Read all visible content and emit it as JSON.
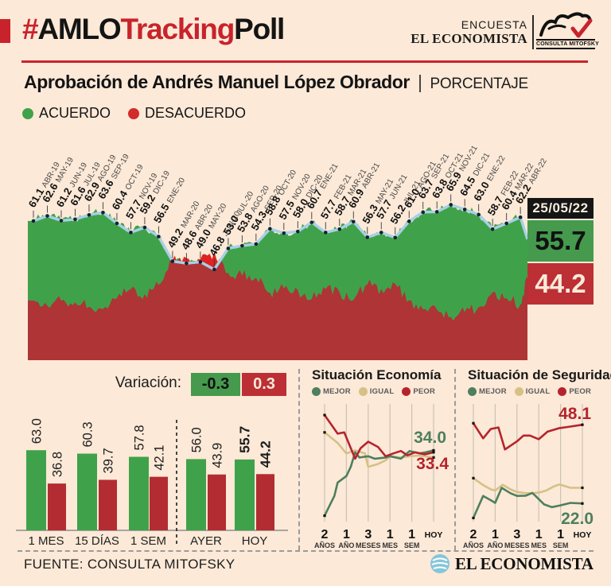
{
  "header": {
    "hashtag": "#",
    "amlo": "AMLO",
    "tracking": "Tracking",
    "poll": "Poll",
    "brand_line1": "ENCUESTA",
    "brand_line2": "EL ECONOMISTA",
    "mitofsky_label": "CONSULTA MITOFSKY"
  },
  "title": {
    "text": "Aprobación de Andrés Manuel López Obrador",
    "sep": "|",
    "unit": "PORCENTAJE"
  },
  "legend": {
    "acuerdo": "ACUERDO",
    "desacuerdo": "DESACUERDO"
  },
  "current": {
    "date": "25/05/22",
    "acuerdo": "55.7",
    "desacuerdo": "44.2"
  },
  "variation": {
    "label": "Variación:",
    "acuerdo": "-0.3",
    "desacuerdo": "0.3"
  },
  "footer": {
    "source": "FUENTE: CONSULTA MITOFSKY",
    "brand": "EL ECONOMISTA"
  },
  "colors": {
    "bg": "#fce9d7",
    "crimson": "#c8232c",
    "ink": "#141414",
    "area_green": "#3fa24a",
    "area_maroon": "#ae3436",
    "area_bright_red": "#e02320",
    "blue_line": "#a8cfe7",
    "dot": "#16222e",
    "badge_green": "#459a4d",
    "badge_red": "#bc2f34",
    "bar_green": "#3fa24a",
    "bar_red": "#b32c32",
    "mejor": "#4e7f5e",
    "igual": "#d5c185",
    "peor": "#b5242d",
    "grid": "#ccc2b4"
  },
  "chart_data": [
    {
      "id": "tracking",
      "type": "area",
      "title": "Aprobación de Andrés Manuel López Obrador",
      "unit": "PORCENTAJE",
      "legend": [
        "ACUERDO",
        "DESACUERDO"
      ],
      "x_labels": [
        "ABR-19",
        "MAY-19",
        "JUN-19",
        "JUL-19",
        "AGO-19",
        "SEP-19",
        "OCT-19",
        "NOV-19",
        "DIC-19",
        "ENE-20",
        "MAR-20",
        "ABR-20",
        "MAY-20",
        "JUN-20",
        "JUL-20",
        "AGO-20",
        "SEP-20",
        "OCT-20",
        "NOV-20",
        "DIC-20",
        "ENE-21",
        "FEB-21",
        "MAR-21",
        "ABR-21",
        "MAY-21",
        "JUN-21",
        "JUL-21",
        "AGO-21",
        "SEP-21",
        "OCT-21",
        "NOV-21",
        "DIC-21",
        "ENE-22",
        "FEB-22",
        "MAR-22",
        "ABR-22"
      ],
      "series": [
        {
          "name": "ACUERDO",
          "values": [
            61.1,
            62.6,
            61.2,
            61.6,
            62.9,
            63.6,
            60.4,
            57.7,
            59.2,
            56.5,
            49.2,
            48.6,
            49.0,
            46.8,
            53.0,
            53.8,
            54.3,
            58.8,
            57.5,
            58.0,
            60.7,
            57.7,
            58.7,
            60.9,
            56.3,
            57.7,
            56.2,
            61.0,
            63.7,
            63.8,
            65.9,
            64.5,
            63.0,
            58.7,
            60.4,
            62.2
          ]
        },
        {
          "name": "DESACUERDO",
          "values": [
            37.6,
            36.1,
            37.5,
            37.1,
            35.8,
            35.1,
            38.3,
            41.0,
            39.5,
            42.2,
            49.5,
            50.1,
            49.7,
            51.9,
            45.7,
            44.9,
            44.4,
            39.9,
            41.2,
            40.7,
            38.0,
            41.0,
            40.0,
            37.8,
            42.4,
            41.0,
            42.5,
            37.7,
            35.0,
            34.9,
            32.8,
            34.2,
            35.7,
            40.0,
            38.3,
            36.5
          ]
        }
      ],
      "current": {
        "date": "25/05/22",
        "acuerdo": 55.7,
        "desacuerdo": 44.2
      },
      "ylim": [
        20,
        68
      ]
    },
    {
      "id": "bars",
      "type": "bar",
      "categories": [
        "1 MES",
        "15 DÍAS",
        "1 SEM",
        "AYER",
        "HOY"
      ],
      "series": [
        {
          "name": "ACUERDO",
          "values": [
            63.0,
            60.3,
            57.8,
            56.0,
            55.7
          ]
        },
        {
          "name": "DESACUERDO",
          "values": [
            36.8,
            39.7,
            42.1,
            43.9,
            44.2
          ]
        }
      ],
      "emphasis_category": "HOY"
    },
    {
      "id": "economia",
      "type": "line",
      "title": "Situación Economía",
      "legend": [
        "MEJOR",
        "IGUAL",
        "PEOR"
      ],
      "x_ticks": [
        {
          "n": "2",
          "u": "AÑOS"
        },
        {
          "n": "1",
          "u": "AÑO"
        },
        {
          "n": "3",
          "u": "MESES"
        },
        {
          "n": "1",
          "u": "MES"
        },
        {
          "n": "1",
          "u": "SEM"
        },
        {
          "n": "HOY",
          "u": ""
        }
      ],
      "end_labels": {
        "MEJOR": "34.0",
        "PEOR": "33.4"
      },
      "ylim": [
        11,
        49
      ],
      "series": [
        {
          "name": "MEJOR",
          "points": [
            [
              0,
              12.9
            ],
            [
              0.09,
              19.3
            ],
            [
              0.12,
              23.6
            ],
            [
              0.2,
              25.7
            ],
            [
              0.24,
              28.7
            ],
            [
              0.28,
              33.4
            ],
            [
              0.32,
              31.7
            ],
            [
              0.4,
              32.1
            ],
            [
              0.46,
              31.3
            ],
            [
              0.56,
              31.7
            ],
            [
              0.6,
              32.1
            ],
            [
              0.7,
              31.3
            ],
            [
              0.78,
              33.8
            ],
            [
              0.87,
              33.0
            ],
            [
              0.93,
              33.4
            ],
            [
              1,
              34.0
            ]
          ]
        },
        {
          "name": "IGUAL",
          "points": [
            [
              0,
              39.8
            ],
            [
              0.12,
              36.4
            ],
            [
              0.2,
              33.0
            ],
            [
              0.28,
              34.0
            ],
            [
              0.37,
              33.0
            ],
            [
              0.4,
              28.7
            ],
            [
              0.49,
              29.6
            ],
            [
              0.56,
              30.8
            ],
            [
              0.6,
              32.1
            ],
            [
              0.7,
              31.7
            ],
            [
              0.78,
              32.1
            ],
            [
              0.87,
              32.3
            ],
            [
              1,
              31.7
            ]
          ]
        },
        {
          "name": "PEOR",
          "points": [
            [
              0,
              45.4
            ],
            [
              0.12,
              39.4
            ],
            [
              0.18,
              39.8
            ],
            [
              0.28,
              31.3
            ],
            [
              0.33,
              34.7
            ],
            [
              0.4,
              36.8
            ],
            [
              0.49,
              35.1
            ],
            [
              0.56,
              32.1
            ],
            [
              0.63,
              33.0
            ],
            [
              0.7,
              33.8
            ],
            [
              0.76,
              32.4
            ],
            [
              0.83,
              33.4
            ],
            [
              0.92,
              32.7
            ],
            [
              1,
              33.4
            ]
          ]
        }
      ]
    },
    {
      "id": "seguridad",
      "type": "line",
      "title": "Situación de Seguridad",
      "legend": [
        "MEJOR",
        "IGUAL",
        "PEOR"
      ],
      "x_ticks": [
        {
          "n": "2",
          "u": "AÑOS"
        },
        {
          "n": "1",
          "u": "AÑO"
        },
        {
          "n": "3",
          "u": "MESES"
        },
        {
          "n": "1",
          "u": "MES"
        },
        {
          "n": "1",
          "u": "SEM"
        },
        {
          "n": "HOY",
          "u": ""
        }
      ],
      "end_labels": {
        "PEOR": "48.1",
        "MEJOR": "22.0"
      },
      "ylim": [
        16,
        55
      ],
      "series": [
        {
          "name": "MEJOR",
          "points": [
            [
              0,
              17.2
            ],
            [
              0.09,
              24.5
            ],
            [
              0.16,
              23.1
            ],
            [
              0.2,
              22.2
            ],
            [
              0.26,
              27.2
            ],
            [
              0.34,
              25.4
            ],
            [
              0.4,
              24.5
            ],
            [
              0.48,
              24.6
            ],
            [
              0.54,
              25.5
            ],
            [
              0.57,
              24.5
            ],
            [
              0.65,
              21.7
            ],
            [
              0.72,
              20.8
            ],
            [
              0.79,
              21.3
            ],
            [
              0.89,
              22.2
            ],
            [
              1,
              22.0
            ]
          ]
        },
        {
          "name": "IGUAL",
          "points": [
            [
              0,
              30.4
            ],
            [
              0.09,
              28.1
            ],
            [
              0.16,
              26.7
            ],
            [
              0.2,
              26.3
            ],
            [
              0.27,
              28.2
            ],
            [
              0.34,
              26.7
            ],
            [
              0.4,
              25.8
            ],
            [
              0.48,
              25.4
            ],
            [
              0.54,
              25.4
            ],
            [
              0.6,
              25.6
            ],
            [
              0.67,
              26.3
            ],
            [
              0.74,
              27.7
            ],
            [
              0.79,
              28.3
            ],
            [
              0.89,
              27.2
            ],
            [
              1,
              27.2
            ]
          ]
        },
        {
          "name": "PEOR",
          "points": [
            [
              0,
              48.6
            ],
            [
              0.09,
              43.6
            ],
            [
              0.16,
              46.7
            ],
            [
              0.23,
              47.2
            ],
            [
              0.29,
              39.9
            ],
            [
              0.4,
              42.6
            ],
            [
              0.46,
              44.5
            ],
            [
              0.52,
              44.5
            ],
            [
              0.6,
              43.3
            ],
            [
              0.68,
              45.8
            ],
            [
              0.79,
              47.0
            ],
            [
              0.89,
              47.5
            ],
            [
              1,
              48.1
            ]
          ]
        }
      ]
    }
  ]
}
